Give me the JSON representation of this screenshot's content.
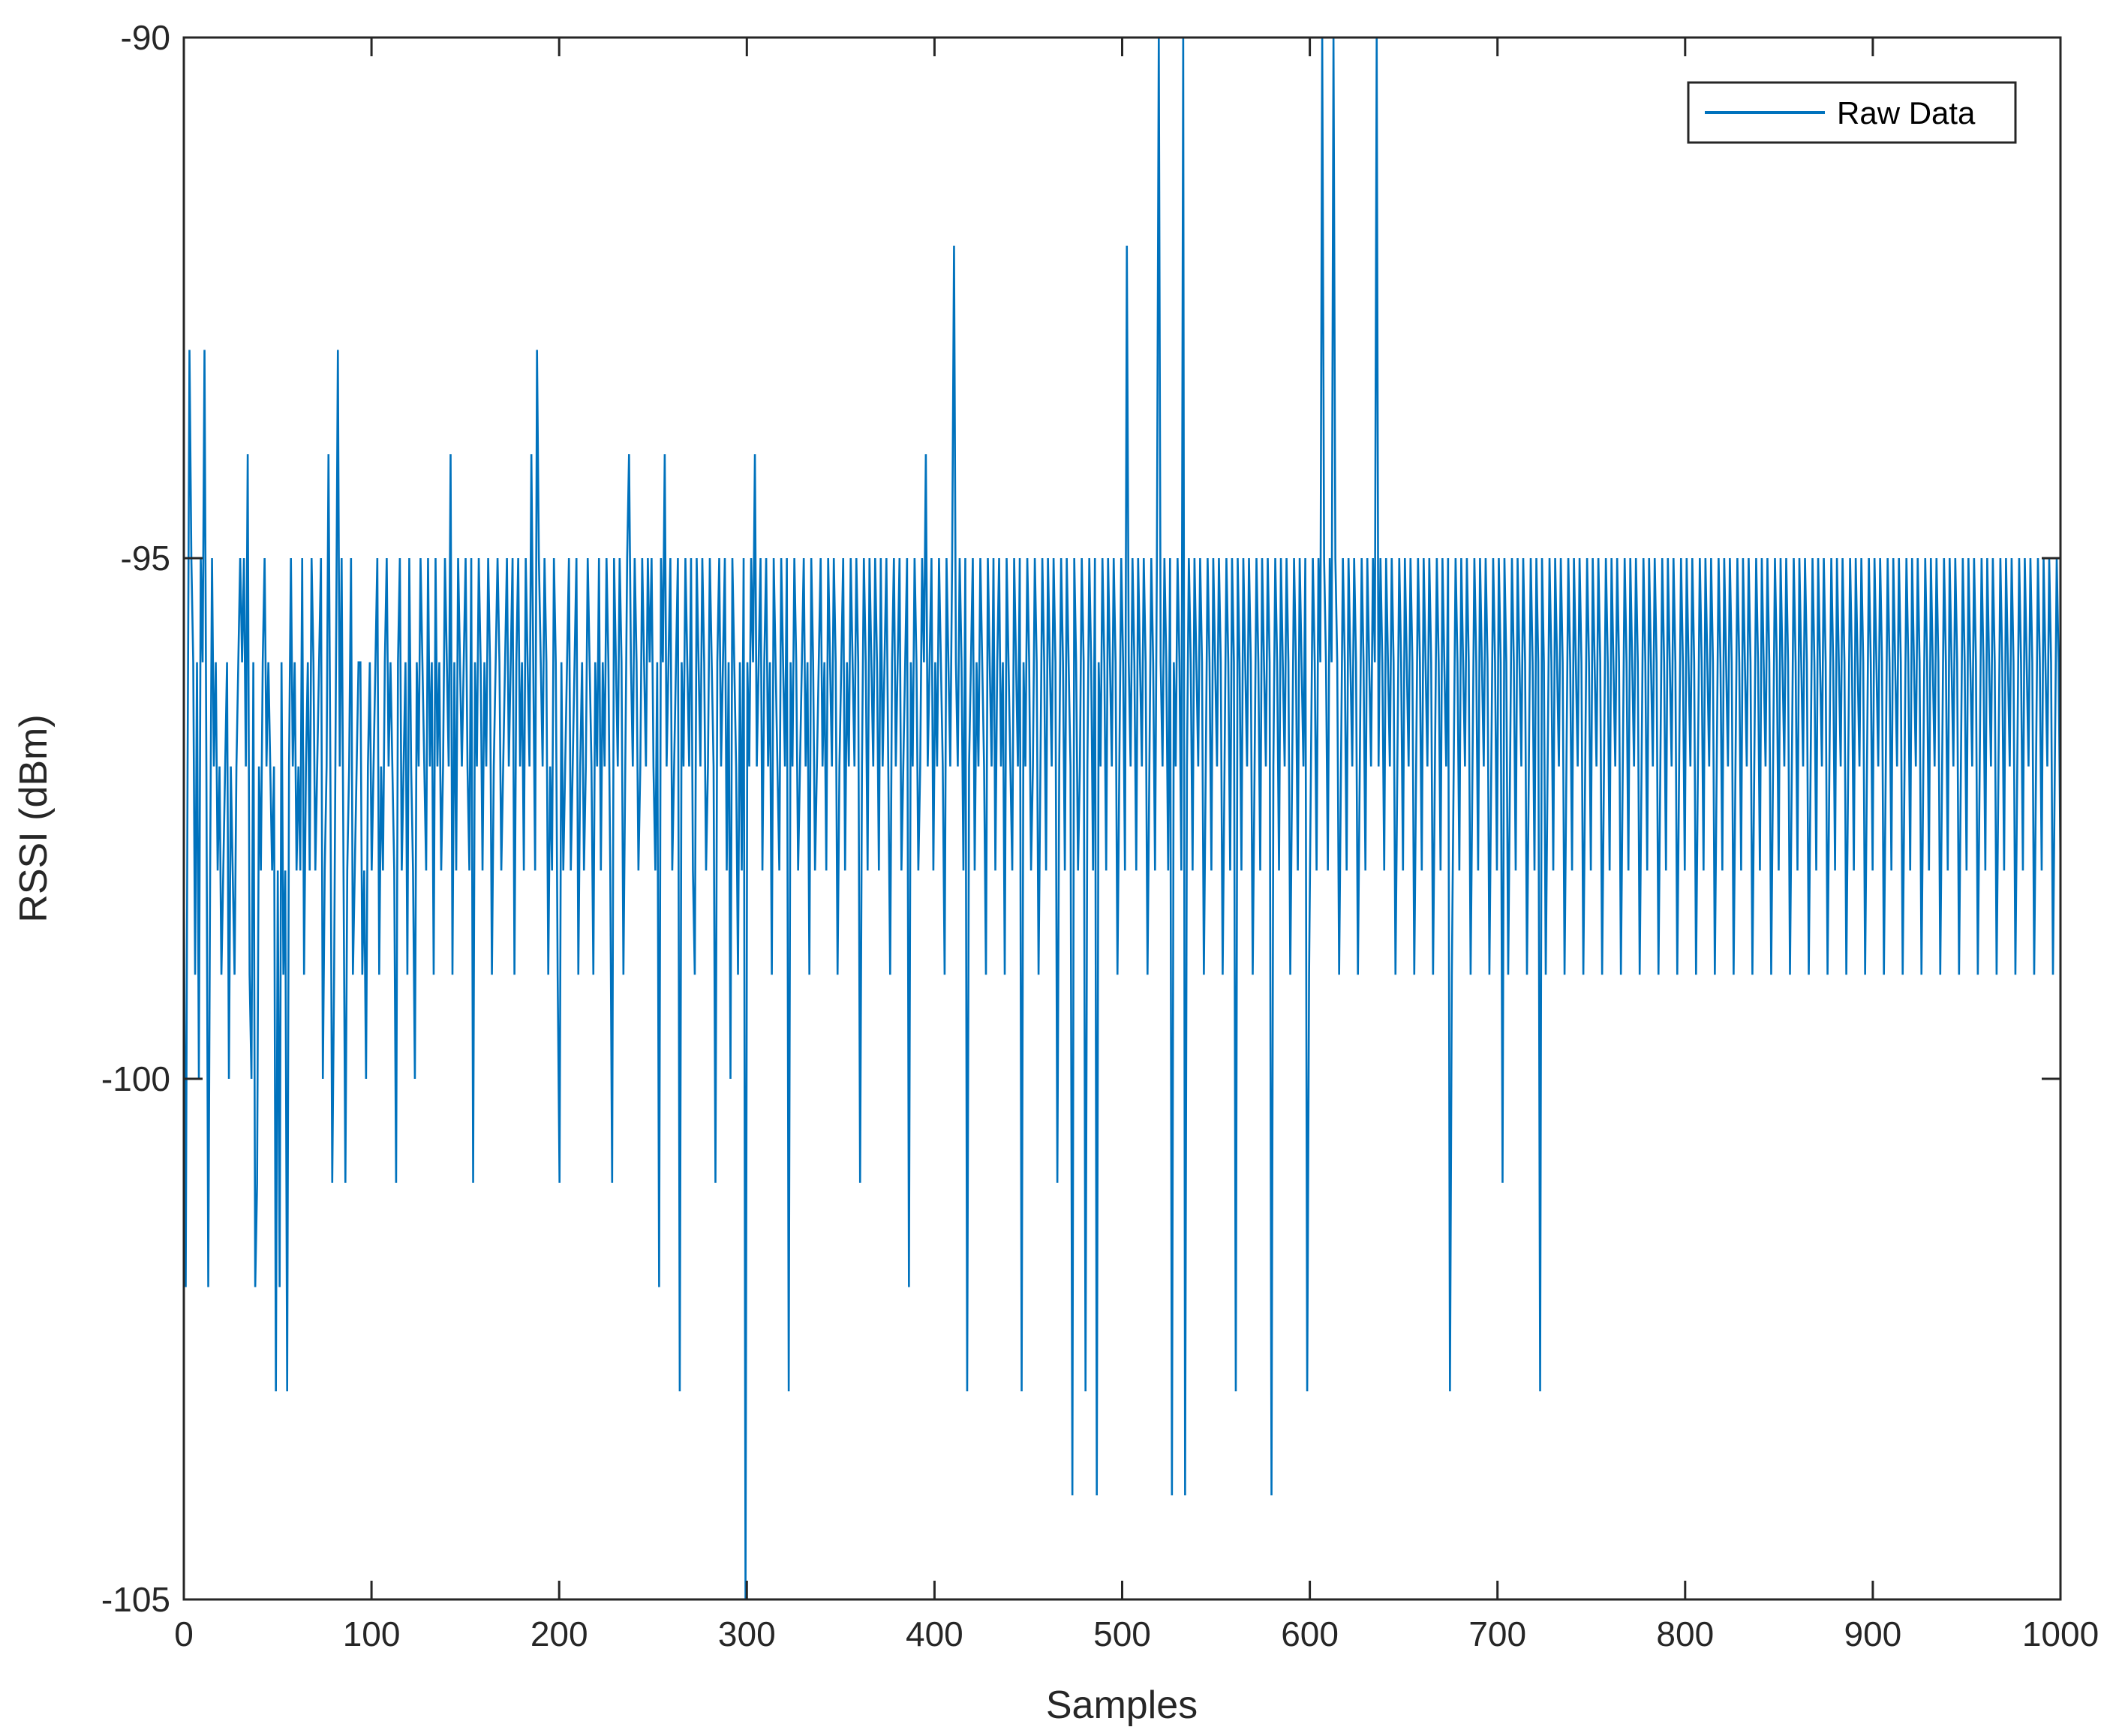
{
  "chart_data": {
    "type": "line",
    "title": "",
    "xlabel": "Samples",
    "ylabel": "RSSI (dBm)",
    "xlim": [
      0,
      1000
    ],
    "ylim": [
      -105,
      -90
    ],
    "xticks": [
      "0",
      "100",
      "200",
      "300",
      "400",
      "500",
      "600",
      "700",
      "800",
      "900",
      "1000"
    ],
    "yticks": [
      "-90",
      "-95",
      "-100",
      "-105"
    ],
    "grid": false,
    "legend_position": "top-right",
    "series": [
      {
        "name": "Raw Data",
        "color": "#0072BD",
        "sample_count": 1000,
        "description_levels": [
          -92,
          -93,
          -94,
          -95,
          -96,
          -97,
          -98,
          -99,
          -100,
          -101,
          -102,
          -103,
          -104,
          -105
        ],
        "peaks": [
          {
            "x": 294,
            "y": -105
          },
          {
            "x": 398,
            "y": -92
          },
          {
            "x": 490,
            "y": -92
          },
          {
            "x": 510,
            "y": -90
          },
          {
            "x": 528,
            "y": -90
          },
          {
            "x": 605,
            "y": -90
          },
          {
            "x": 617,
            "y": -90
          },
          {
            "x": 645,
            "y": -90
          }
        ],
        "values": [
          -98,
          -102,
          -97,
          -93,
          -95,
          -96,
          -99,
          -96,
          -100,
          -95,
          -96,
          -93,
          -97,
          -102,
          -98,
          -95,
          -97,
          -96,
          -98,
          -97,
          -99,
          -98,
          -97,
          -96,
          -100,
          -97,
          -98,
          -99,
          -97,
          -96,
          -95,
          -96,
          -95,
          -97,
          -94,
          -99,
          -100,
          -96,
          -102,
          -101,
          -97,
          -98,
          -96,
          -95,
          -97,
          -96,
          -97,
          -98,
          -97,
          -103,
          -98,
          -102,
          -96,
          -99,
          -98,
          -103,
          -97,
          -95,
          -97,
          -96,
          -98,
          -97,
          -98,
          -95,
          -99,
          -97,
          -96,
          -98,
          -95,
          -96,
          -98,
          -97,
          -96,
          -95,
          -100,
          -98,
          -97,
          -94,
          -97,
          -101,
          -99,
          -96,
          -93,
          -97,
          -95,
          -98,
          -101,
          -98,
          -97,
          -95,
          -99,
          -98,
          -97,
          -96,
          -96,
          -99,
          -98,
          -100,
          -97,
          -96,
          -98,
          -97,
          -96,
          -95,
          -99,
          -97,
          -98,
          -96,
          -95,
          -97,
          -96,
          -97,
          -98,
          -101,
          -96,
          -95,
          -98,
          -97,
          -96,
          -99,
          -95,
          -97,
          -98,
          -100,
          -96,
          -97,
          -95,
          -96,
          -97,
          -98,
          -95,
          -97,
          -96,
          -99,
          -95,
          -97,
          -96,
          -98,
          -97,
          -95,
          -96,
          -97,
          -94,
          -99,
          -96,
          -98,
          -95,
          -96,
          -97,
          -96,
          -95,
          -97,
          -98,
          -95,
          -101,
          -96,
          -97,
          -95,
          -96,
          -98,
          -96,
          -97,
          -95,
          -96,
          -99,
          -97,
          -96,
          -95,
          -96,
          -98,
          -97,
          -96,
          -95,
          -97,
          -96,
          -95,
          -99,
          -96,
          -95,
          -97,
          -96,
          -98,
          -95,
          -96,
          -97,
          -94,
          -96,
          -98,
          -93,
          -95,
          -96,
          -97,
          -95,
          -96,
          -99,
          -97,
          -98,
          -95,
          -96,
          -99,
          -101,
          -96,
          -98,
          -97,
          -96,
          -95,
          -98,
          -97,
          -96,
          -95,
          -99,
          -97,
          -96,
          -98,
          -97,
          -95,
          -96,
          -97,
          -99,
          -96,
          -97,
          -95,
          -98,
          -96,
          -97,
          -95,
          -96,
          -98,
          -101,
          -95,
          -96,
          -97,
          -95,
          -96,
          -99,
          -97,
          -95,
          -94,
          -96,
          -97,
          -95,
          -96,
          -98,
          -97,
          -95,
          -96,
          -97,
          -95,
          -96,
          -95,
          -97,
          -98,
          -96,
          -102,
          -95,
          -96,
          -94,
          -97,
          -96,
          -95,
          -98,
          -97,
          -96,
          -95,
          -103,
          -96,
          -97,
          -95,
          -96,
          -97,
          -95,
          -98,
          -99,
          -95,
          -96,
          -97,
          -95,
          -96,
          -98,
          -97,
          -95,
          -96,
          -97,
          -101,
          -96,
          -95,
          -97,
          -96,
          -95,
          -98,
          -96,
          -100,
          -95,
          -96,
          -97,
          -99,
          -96,
          -98,
          -95,
          -105,
          -96,
          -97,
          -95,
          -96,
          -94,
          -97,
          -96,
          -95,
          -98,
          -96,
          -95,
          -97,
          -96,
          -99,
          -95,
          -96,
          -97,
          -98,
          -95,
          -96,
          -97,
          -95,
          -103,
          -96,
          -97,
          -95,
          -96,
          -98,
          -97,
          -96,
          -95,
          -97,
          -96,
          -99,
          -95,
          -96,
          -98,
          -97,
          -96,
          -95,
          -97,
          -96,
          -98,
          -95,
          -96,
          -97,
          -95,
          -96,
          -99,
          -97,
          -96,
          -95,
          -98,
          -96,
          -97,
          -95,
          -96,
          -97,
          -95,
          -96,
          -101,
          -97,
          -95,
          -96,
          -98,
          -95,
          -96,
          -97,
          -95,
          -96,
          -98,
          -95,
          -97,
          -96,
          -95,
          -97,
          -99,
          -96,
          -95,
          -97,
          -96,
          -95,
          -98,
          -97,
          -96,
          -95,
          -102,
          -96,
          -97,
          -95,
          -96,
          -98,
          -97,
          -95,
          -96,
          -94,
          -97,
          -96,
          -95,
          -98,
          -96,
          -97,
          -95,
          -96,
          -97,
          -99,
          -95,
          -96,
          -97,
          -95,
          -92,
          -96,
          -97,
          -95,
          -96,
          -98,
          -95,
          -103,
          -97,
          -96,
          -95,
          -98,
          -96,
          -97,
          -95,
          -96,
          -97,
          -99,
          -95,
          -96,
          -97,
          -95,
          -98,
          -96,
          -95,
          -97,
          -96,
          -99,
          -95,
          -96,
          -97,
          -98,
          -95,
          -96,
          -97,
          -95,
          -103,
          -96,
          -97,
          -95,
          -96,
          -98,
          -97,
          -95,
          -96,
          -99,
          -97,
          -95,
          -96,
          -98,
          -95,
          -96,
          -97,
          -95,
          -96,
          -101,
          -97,
          -95,
          -96,
          -98,
          -95,
          -96,
          -97,
          -104,
          -95,
          -96,
          -98,
          -97,
          -95,
          -96,
          -103,
          -97,
          -95,
          -96,
          -98,
          -95,
          -104,
          -96,
          -97,
          -95,
          -96,
          -98,
          -95,
          -96,
          -97,
          -95,
          -96,
          -99,
          -97,
          -95,
          -96,
          -98,
          -92,
          -96,
          -97,
          -95,
          -96,
          -98,
          -95,
          -96,
          -97,
          -95,
          -96,
          -99,
          -97,
          -95,
          -96,
          -98,
          -95,
          -90,
          -96,
          -97,
          -95,
          -96,
          -98,
          -95,
          -104,
          -96,
          -97,
          -95,
          -96,
          -98,
          -90,
          -104,
          -97,
          -95,
          -96,
          -98,
          -95,
          -96,
          -97,
          -95,
          -96,
          -99,
          -97,
          -95,
          -96,
          -98,
          -95,
          -96,
          -97,
          -95,
          -96,
          -99,
          -97,
          -95,
          -96,
          -98,
          -95,
          -96,
          -103,
          -95,
          -96,
          -98,
          -95,
          -96,
          -97,
          -95,
          -96,
          -99,
          -97,
          -95,
          -96,
          -98,
          -95,
          -96,
          -97,
          -95,
          -96,
          -104,
          -97,
          -95,
          -96,
          -98,
          -95,
          -96,
          -97,
          -95,
          -96,
          -99,
          -97,
          -95,
          -96,
          -98,
          -95,
          -96,
          -97,
          -95,
          -103,
          -99,
          -97,
          -95,
          -96,
          -98,
          -95,
          -96,
          -90,
          -95,
          -96,
          -98,
          -95,
          -96,
          -90,
          -95,
          -96,
          -99,
          -97,
          -95,
          -96,
          -98,
          -95,
          -96,
          -97,
          -95,
          -96,
          -99,
          -97,
          -95,
          -96,
          -98,
          -95,
          -96,
          -97,
          -95,
          -96,
          -90,
          -97,
          -95,
          -96,
          -98,
          -95,
          -96,
          -97,
          -95,
          -96,
          -99,
          -97,
          -95,
          -96,
          -98,
          -95,
          -96,
          -97,
          -95,
          -96,
          -99,
          -97,
          -95,
          -96,
          -98,
          -95,
          -96,
          -97,
          -95,
          -96,
          -99,
          -97,
          -95,
          -96,
          -98,
          -95,
          -96,
          -97,
          -95,
          -103,
          -99,
          -97,
          -95,
          -96,
          -98,
          -95,
          -96,
          -97,
          -95,
          -96,
          -99,
          -97,
          -95,
          -96,
          -98,
          -95,
          -96,
          -97,
          -95,
          -96,
          -99,
          -97,
          -95,
          -96,
          -98,
          -95,
          -96,
          -101,
          -95,
          -96,
          -99,
          -97,
          -95,
          -96,
          -98,
          -95,
          -96,
          -97,
          -95,
          -96,
          -99,
          -97,
          -95,
          -96,
          -98,
          -95,
          -96,
          -103,
          -95,
          -96,
          -99,
          -97,
          -95,
          -96,
          -98,
          -95,
          -96,
          -97,
          -95,
          -96,
          -99,
          -97,
          -95,
          -96,
          -98,
          -95,
          -96,
          -97,
          -95,
          -96,
          -99,
          -97,
          -95,
          -96,
          -98,
          -95,
          -96,
          -97,
          -95,
          -96,
          -99,
          -97,
          -95,
          -96,
          -98,
          -95,
          -96,
          -97,
          -95,
          -96,
          -99,
          -97,
          -95,
          -96,
          -98,
          -95,
          -96,
          -97,
          -95,
          -96,
          -99,
          -97,
          -95,
          -96,
          -98,
          -95,
          -96,
          -97,
          -95,
          -96,
          -99,
          -97,
          -95,
          -96,
          -98,
          -95,
          -96,
          -97,
          -95,
          -96,
          -99,
          -97,
          -95,
          -96,
          -98,
          -95,
          -96,
          -97,
          -95,
          -96,
          -99,
          -97,
          -95,
          -96,
          -98,
          -95,
          -96,
          -97,
          -95,
          -96,
          -99,
          -97,
          -95,
          -96,
          -98,
          -95,
          -96,
          -97,
          -95,
          -96,
          -99,
          -97,
          -95,
          -96,
          -98,
          -95,
          -96,
          -97,
          -95,
          -96,
          -99,
          -97,
          -95,
          -96,
          -98,
          -95,
          -96,
          -97,
          -95,
          -96,
          -99,
          -97,
          -95,
          -96,
          -98,
          -95,
          -96,
          -97,
          -95,
          -96,
          -99,
          -97,
          -95,
          -96,
          -98,
          -95,
          -96,
          -97,
          -95,
          -96,
          -99,
          -97,
          -95,
          -96,
          -98,
          -95,
          -96,
          -97,
          -95,
          -96,
          -99,
          -97,
          -95,
          -96,
          -98,
          -95,
          -96,
          -97,
          -95,
          -96,
          -99,
          -97,
          -95,
          -96,
          -98,
          -95,
          -96,
          -97,
          -95,
          -96,
          -99,
          -97,
          -95,
          -96,
          -98,
          -95,
          -96,
          -97,
          -95,
          -96,
          -99,
          -97,
          -95,
          -96,
          -98,
          -95,
          -96,
          -97,
          -95,
          -96,
          -99,
          -97,
          -95,
          -96,
          -98,
          -95,
          -96,
          -97,
          -95,
          -96,
          -99,
          -97,
          -95,
          -96,
          -98,
          -95,
          -96,
          -97,
          -95,
          -96,
          -99,
          -97,
          -95,
          -96,
          -98,
          -95,
          -96,
          -97,
          -95,
          -96,
          -99,
          -97,
          -95,
          -96,
          -98,
          -95,
          -96,
          -97,
          -95,
          -96,
          -99,
          -97,
          -95,
          -96,
          -98,
          -95,
          -96,
          -97,
          -95,
          -96,
          -99,
          -97,
          -95,
          -96,
          -98,
          -95,
          -96,
          -97,
          -95,
          -96,
          -99,
          -97,
          -95,
          -96,
          -98,
          -95,
          -96,
          -97,
          -95,
          -96,
          -99,
          -97,
          -95,
          -96,
          -98,
          -95,
          -96,
          -97,
          -95,
          -96,
          -99,
          -97,
          -95,
          -96,
          -98,
          -95,
          -96,
          -97,
          -95,
          -96,
          -99,
          -97,
          -95,
          -96,
          -98,
          -95,
          -96,
          -97,
          -95,
          -96,
          -99,
          -97,
          -95,
          -96,
          -98,
          -95
        ]
      }
    ]
  }
}
